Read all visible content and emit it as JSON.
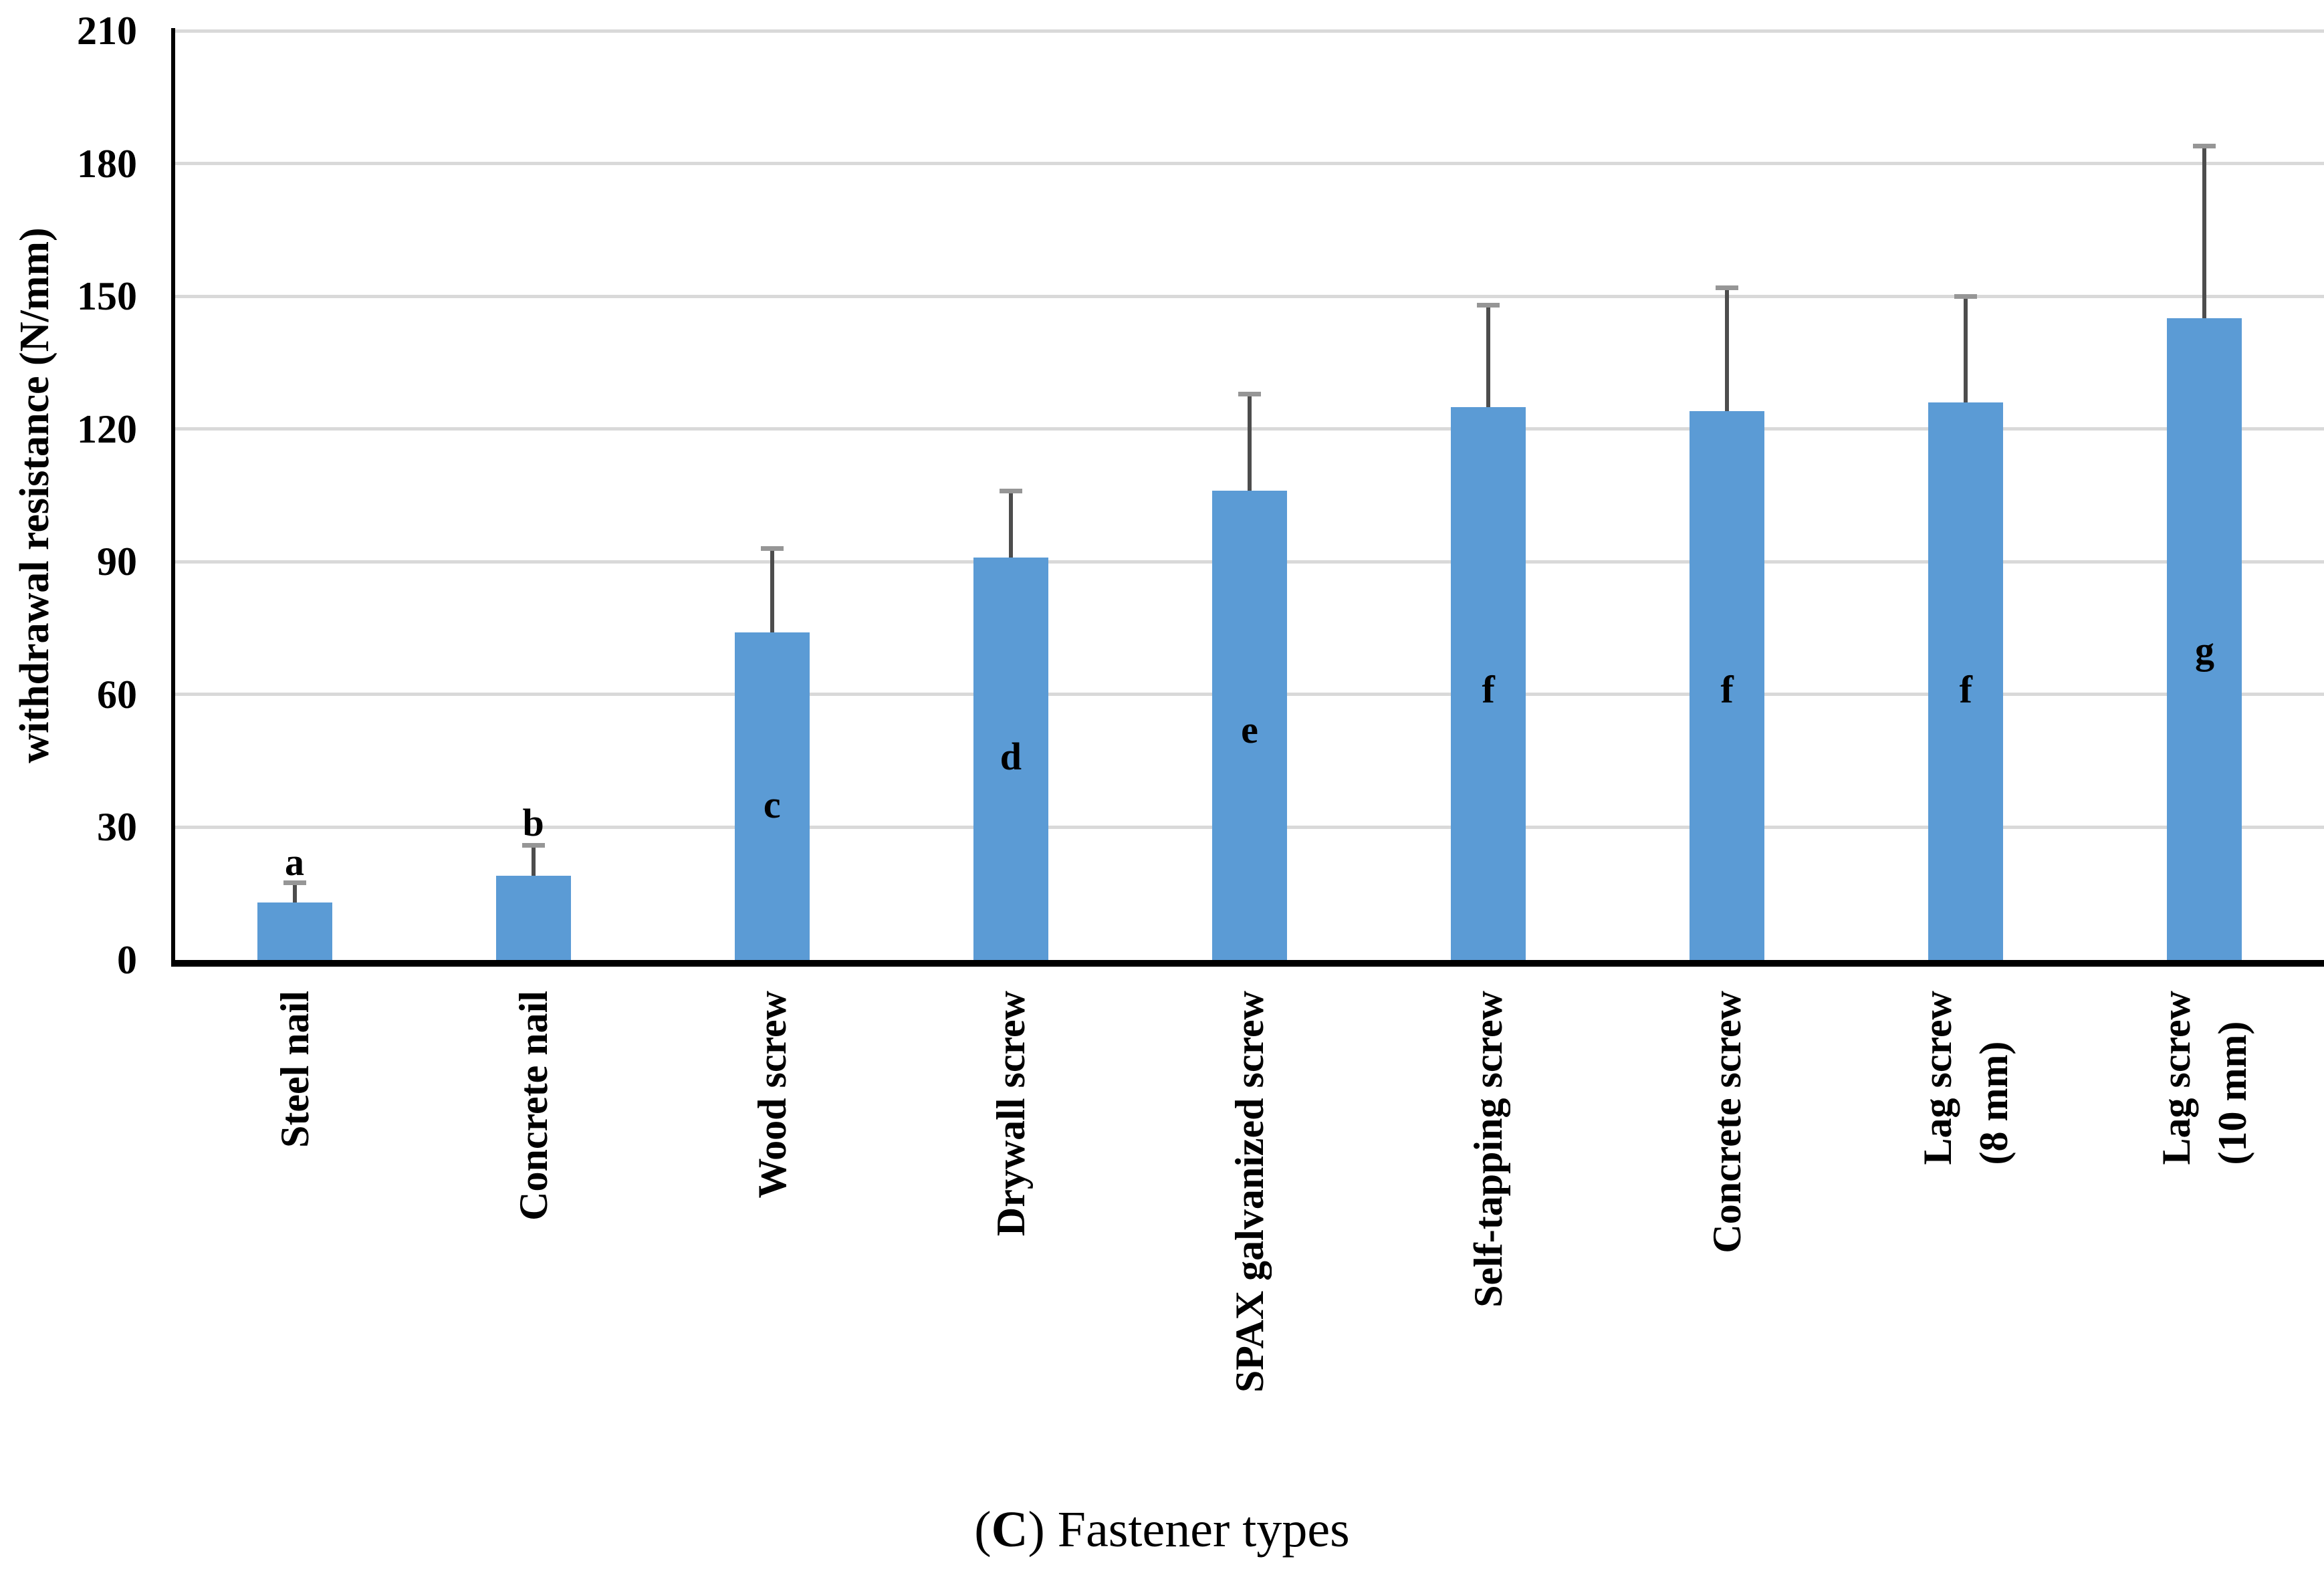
{
  "chart_data": {
    "type": "bar",
    "title": "",
    "xlabel": "Fastener types",
    "ylabel": "withdrawal resistance (N/mm)",
    "ylim": [
      0,
      210
    ],
    "ytick_interval": 30,
    "yticks": [
      210,
      180,
      150,
      120,
      90,
      60,
      30,
      0
    ],
    "grid": true,
    "legend": "none",
    "categories": [
      "Steel nail",
      "Concrete nail",
      "Wood screw",
      "Drywall screw",
      "SPAX galvanized screw",
      "Self-tapping screw",
      "Concrete screw",
      "Lag screw (8 mm)",
      "Lag screw (10 mm)"
    ],
    "tick_labels": [
      "Steel nail",
      "Concrete nail",
      "Wood screw",
      "Drywall screw",
      "SPAX galvanized screw",
      "Self-tapping screw",
      "Concrete screw",
      "Lag screw\n(8 mm)",
      "Lag screw\n(10 mm)"
    ],
    "values": [
      13,
      19,
      74,
      91,
      106,
      125,
      124,
      126,
      145
    ],
    "error_plus": [
      4.5,
      7,
      19,
      15,
      22,
      23,
      28,
      24,
      39
    ],
    "sig_letters": [
      "a",
      "b",
      "c",
      "d",
      "e",
      "f",
      "f",
      "f",
      "g"
    ],
    "sig_letter_y": [
      22,
      31,
      35,
      46,
      52,
      61,
      61,
      61,
      70
    ],
    "bar_color": "#5b9bd5",
    "error_bar_color": "#4d4d4d",
    "error_cap_color": "#969696",
    "gridline_color": "#d9d9d9",
    "axis_color": "#000000"
  },
  "caption": {
    "open": "(",
    "letter": "C",
    "rest": ") Fastener types"
  }
}
